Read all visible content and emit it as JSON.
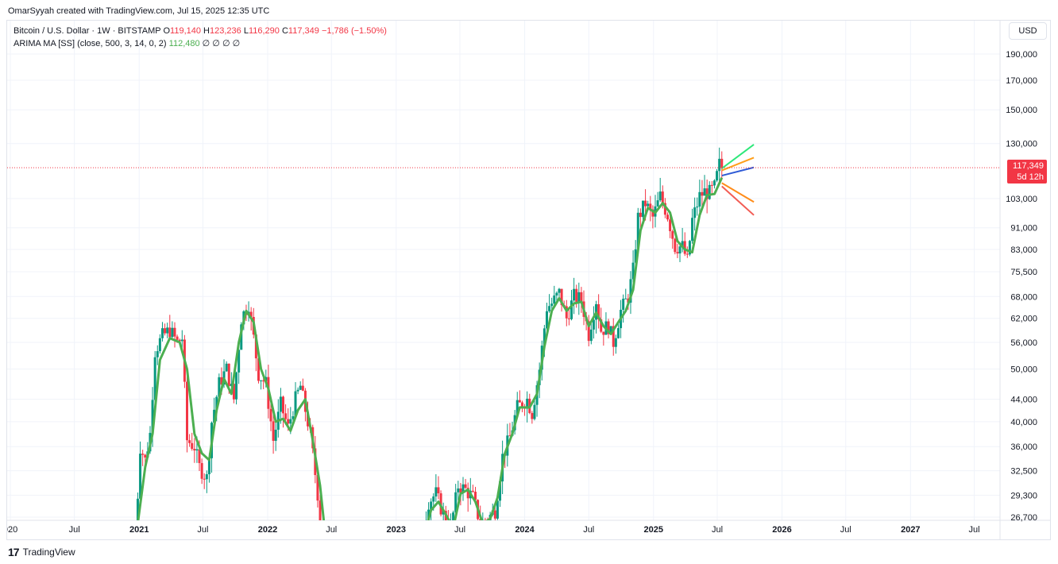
{
  "header": {
    "caption": "OmarSyyah created with TradingView.com, Jul 15, 2025 12:35 UTC"
  },
  "legend": {
    "symbol": "Bitcoin / U.S. Dollar · 1W · BITSTAMP",
    "o_label": "O",
    "o_value": "119,140",
    "h_label": "H",
    "h_value": "123,236",
    "l_label": "L",
    "l_value": "116,290",
    "c_label": "C",
    "c_value": "117,349",
    "change": "−1,786 (−1.50%)",
    "indicator": "ARIMA MA [SS] (close, 500, 3, 14, 0, 2)",
    "indicator_value": "112,480",
    "indicator_flags": "∅ ∅ ∅ ∅"
  },
  "price_scale": {
    "currency": "USD",
    "last_price": "117,349",
    "countdown": "5d 12h"
  },
  "footer": {
    "brand": "TradingView"
  },
  "colors": {
    "up": "#089981",
    "down": "#f23645",
    "ma": "#4caf50",
    "grid": "#f0f3fa",
    "forecast_high": "#2ee87a",
    "forecast_upper": "#ff9f1a",
    "forecast_mid": "#2f5bd6",
    "forecast_lower": "#ff8c1a",
    "forecast_low": "#f25c54"
  },
  "chart_data": {
    "type": "candlestick",
    "title": "Bitcoin / U.S. Dollar · 1W · BITSTAMP",
    "y_scale": "log",
    "ylim": [
      26000,
      235000
    ],
    "y_ticks": [
      26700,
      29300,
      32500,
      36000,
      40000,
      44000,
      50000,
      56000,
      62000,
      68000,
      75500,
      83000,
      91000,
      103000,
      130000,
      150000,
      170000,
      190000
    ],
    "y_tick_labels": [
      "26,700",
      "29,300",
      "32,500",
      "36,000",
      "40,000",
      "44,000",
      "50,000",
      "56,000",
      "62,000",
      "68,000",
      "75,500",
      "83,000",
      "91,000",
      "103,000",
      "130,000",
      "150,000",
      "170,000",
      "190,000"
    ],
    "x_ticks": [
      {
        "date": "2020-01-01",
        "label": "020",
        "bold": false
      },
      {
        "date": "2020-07-01",
        "label": "Jul",
        "bold": false
      },
      {
        "date": "2021-01-01",
        "label": "2021",
        "bold": true
      },
      {
        "date": "2021-07-01",
        "label": "Jul",
        "bold": false
      },
      {
        "date": "2022-01-01",
        "label": "2022",
        "bold": true
      },
      {
        "date": "2022-07-01",
        "label": "Jul",
        "bold": false
      },
      {
        "date": "2023-01-01",
        "label": "2023",
        "bold": true
      },
      {
        "date": "2023-07-01",
        "label": "Jul",
        "bold": false
      },
      {
        "date": "2024-01-01",
        "label": "2024",
        "bold": true
      },
      {
        "date": "2024-07-01",
        "label": "Jul",
        "bold": false
      },
      {
        "date": "2025-01-01",
        "label": "2025",
        "bold": true
      },
      {
        "date": "2025-07-01",
        "label": "Jul",
        "bold": false
      },
      {
        "date": "2026-01-01",
        "label": "2026",
        "bold": true
      },
      {
        "date": "2026-07-01",
        "label": "Jul",
        "bold": false
      },
      {
        "date": "2027-01-01",
        "label": "2027",
        "bold": true
      },
      {
        "date": "2027-07-01",
        "label": "Jul",
        "bold": false
      }
    ],
    "price_path": [
      [
        "2020-12-21",
        24000
      ],
      [
        "2021-01-04",
        36000
      ],
      [
        "2021-01-18",
        34000
      ],
      [
        "2021-02-01",
        38000
      ],
      [
        "2021-02-15",
        54000
      ],
      [
        "2021-03-08",
        57500
      ],
      [
        "2021-03-29",
        59000
      ],
      [
        "2021-04-19",
        56000
      ],
      [
        "2021-05-03",
        57000
      ],
      [
        "2021-05-17",
        37000
      ],
      [
        "2021-06-07",
        36000
      ],
      [
        "2021-06-21",
        33000
      ],
      [
        "2021-07-12",
        31500
      ],
      [
        "2021-07-26",
        40000
      ],
      [
        "2021-08-16",
        47000
      ],
      [
        "2021-09-06",
        50000
      ],
      [
        "2021-09-27",
        44000
      ],
      [
        "2021-10-18",
        62000
      ],
      [
        "2021-11-08",
        66000
      ],
      [
        "2021-11-22",
        57000
      ],
      [
        "2021-12-06",
        49000
      ],
      [
        "2021-12-27",
        47000
      ],
      [
        "2022-01-17",
        37000
      ],
      [
        "2022-02-07",
        43000
      ],
      [
        "2022-02-28",
        39000
      ],
      [
        "2022-03-21",
        44000
      ],
      [
        "2022-04-04",
        46500
      ],
      [
        "2022-05-02",
        38000
      ],
      [
        "2022-05-23",
        29500
      ],
      [
        "2022-06-13",
        22000
      ],
      [
        "2023-03-13",
        24000
      ],
      [
        "2023-04-03",
        28500
      ],
      [
        "2023-04-24",
        29500
      ],
      [
        "2023-05-15",
        27000
      ],
      [
        "2023-06-05",
        25500
      ],
      [
        "2023-06-26",
        30500
      ],
      [
        "2023-07-17",
        30000
      ],
      [
        "2023-08-07",
        29000
      ],
      [
        "2023-08-28",
        26000
      ],
      [
        "2023-09-18",
        26500
      ],
      [
        "2023-10-09",
        27500
      ],
      [
        "2023-10-30",
        34500
      ],
      [
        "2023-11-20",
        37500
      ],
      [
        "2023-12-11",
        42500
      ],
      [
        "2024-01-08",
        44000
      ],
      [
        "2024-01-22",
        41500
      ],
      [
        "2024-02-12",
        50000
      ],
      [
        "2024-03-04",
        65000
      ],
      [
        "2024-03-18",
        66000
      ],
      [
        "2024-04-08",
        69000
      ],
      [
        "2024-04-29",
        62000
      ],
      [
        "2024-05-20",
        68000
      ],
      [
        "2024-06-10",
        67000
      ],
      [
        "2024-07-01",
        58000
      ],
      [
        "2024-07-22",
        67000
      ],
      [
        "2024-08-05",
        59000
      ],
      [
        "2024-08-26",
        60000
      ],
      [
        "2024-09-09",
        56000
      ],
      [
        "2024-09-30",
        64000
      ],
      [
        "2024-10-21",
        68000
      ],
      [
        "2024-11-04",
        76000
      ],
      [
        "2024-11-18",
        95000
      ],
      [
        "2024-12-09",
        101000
      ],
      [
        "2024-12-30",
        95000
      ],
      [
        "2025-01-20",
        104000
      ],
      [
        "2025-02-10",
        96000
      ],
      [
        "2025-03-03",
        84000
      ],
      [
        "2025-03-24",
        84000
      ],
      [
        "2025-04-07",
        79000
      ],
      [
        "2025-04-21",
        94000
      ],
      [
        "2025-05-12",
        104000
      ],
      [
        "2025-05-26",
        106000
      ],
      [
        "2025-06-09",
        105500
      ],
      [
        "2025-06-23",
        108000
      ],
      [
        "2025-07-07",
        119000
      ],
      [
        "2025-07-14",
        117349
      ]
    ],
    "series": [
      {
        "name": "ARIMA MA [SS] (close, 500, 3, 14, 0, 2)",
        "type": "line",
        "points": [
          [
            "2020-12-21",
            24000
          ],
          [
            "2021-01-18",
            33000
          ],
          [
            "2021-02-08",
            38000
          ],
          [
            "2021-03-01",
            52000
          ],
          [
            "2021-03-29",
            57000
          ],
          [
            "2021-04-26",
            56000
          ],
          [
            "2021-05-17",
            50000
          ],
          [
            "2021-06-07",
            38000
          ],
          [
            "2021-06-28",
            35000
          ],
          [
            "2021-07-19",
            34000
          ],
          [
            "2021-08-09",
            42000
          ],
          [
            "2021-08-30",
            48000
          ],
          [
            "2021-09-20",
            45000
          ],
          [
            "2021-10-11",
            56000
          ],
          [
            "2021-11-01",
            64000
          ],
          [
            "2021-11-22",
            61000
          ],
          [
            "2021-12-13",
            50000
          ],
          [
            "2022-01-03",
            46000
          ],
          [
            "2022-01-24",
            40000
          ],
          [
            "2022-02-14",
            40500
          ],
          [
            "2022-03-07",
            38500
          ],
          [
            "2022-03-28",
            42000
          ],
          [
            "2022-04-18",
            44000
          ],
          [
            "2022-05-09",
            37000
          ],
          [
            "2022-05-30",
            30500
          ],
          [
            "2022-06-13",
            25000
          ],
          [
            "2023-03-20",
            24500
          ],
          [
            "2023-04-10",
            27500
          ],
          [
            "2023-05-01",
            28500
          ],
          [
            "2023-05-22",
            27000
          ],
          [
            "2023-06-12",
            25500
          ],
          [
            "2023-07-03",
            29500
          ],
          [
            "2023-07-24",
            30000
          ],
          [
            "2023-08-14",
            28500
          ],
          [
            "2023-09-04",
            26000
          ],
          [
            "2023-09-25",
            26500
          ],
          [
            "2023-10-16",
            29000
          ],
          [
            "2023-11-06",
            35000
          ],
          [
            "2023-11-27",
            38000
          ],
          [
            "2023-12-18",
            42500
          ],
          [
            "2024-01-15",
            42500
          ],
          [
            "2024-02-05",
            45000
          ],
          [
            "2024-02-26",
            55000
          ],
          [
            "2024-03-18",
            64000
          ],
          [
            "2024-04-08",
            67500
          ],
          [
            "2024-04-29",
            64000
          ],
          [
            "2024-05-20",
            66000
          ],
          [
            "2024-06-10",
            66500
          ],
          [
            "2024-07-01",
            60000
          ],
          [
            "2024-07-22",
            63500
          ],
          [
            "2024-08-12",
            60000
          ],
          [
            "2024-09-02",
            58000
          ],
          [
            "2024-09-23",
            61000
          ],
          [
            "2024-10-14",
            64000
          ],
          [
            "2024-11-04",
            70000
          ],
          [
            "2024-11-25",
            90000
          ],
          [
            "2024-12-16",
            99000
          ],
          [
            "2025-01-06",
            97000
          ],
          [
            "2025-01-27",
            101000
          ],
          [
            "2025-02-17",
            97000
          ],
          [
            "2025-03-10",
            86000
          ],
          [
            "2025-03-31",
            83000
          ],
          [
            "2025-04-21",
            82000
          ],
          [
            "2025-05-12",
            96000
          ],
          [
            "2025-06-02",
            104500
          ],
          [
            "2025-06-23",
            105000
          ],
          [
            "2025-07-14",
            112480
          ]
        ]
      },
      {
        "name": "",
        "type": "forecast",
        "color_key": "forecast_high",
        "points": [
          [
            "2025-07-14",
            117000
          ],
          [
            "2025-10-13",
            129500
          ]
        ]
      },
      {
        "name": "",
        "type": "forecast",
        "color_key": "forecast_upper",
        "points": [
          [
            "2025-07-14",
            116000
          ],
          [
            "2025-10-13",
            122500
          ]
        ]
      },
      {
        "name": "",
        "type": "forecast",
        "color_key": "forecast_mid",
        "points": [
          [
            "2025-07-14",
            113500
          ],
          [
            "2025-10-13",
            117500
          ]
        ]
      },
      {
        "name": "",
        "type": "forecast",
        "color_key": "forecast_lower",
        "points": [
          [
            "2025-07-14",
            110000
          ],
          [
            "2025-10-13",
            101500
          ]
        ]
      },
      {
        "name": "",
        "type": "forecast",
        "color_key": "forecast_low",
        "points": [
          [
            "2025-07-14",
            108500
          ],
          [
            "2025-10-13",
            96000
          ]
        ]
      }
    ],
    "last_price_value": 117349,
    "grid": true
  }
}
